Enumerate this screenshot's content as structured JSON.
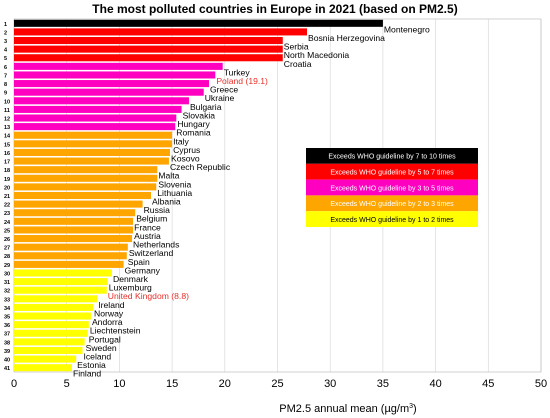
{
  "chart_data": {
    "type": "bar",
    "orientation": "horizontal",
    "title": "The most polluted countries in Europe in 2021 (based on PM2.5)",
    "xlabel": "PM2.5 annual mean (µg/m³)",
    "xlabel_main": "PM2.5 annual mean (µg/m",
    "xlabel_sup": "3",
    "xlabel_end": ")",
    "xlim": [
      0,
      50
    ],
    "xticks": [
      "0",
      "5",
      "10",
      "15",
      "20",
      "25",
      "30",
      "35",
      "40",
      "45",
      "50"
    ],
    "grid": true,
    "legend_position": "right",
    "bars": [
      {
        "rank": "1",
        "country": "Montenegro",
        "value": 35.0,
        "color": "#000000"
      },
      {
        "rank": "2",
        "country": "Bosnia Herzegovina",
        "value": 27.8,
        "color": "#ff0000"
      },
      {
        "rank": "3",
        "country": "Serbia",
        "value": 25.5,
        "color": "#ff0000"
      },
      {
        "rank": "4",
        "country": "North Macedonia",
        "value": 25.5,
        "color": "#ff0000"
      },
      {
        "rank": "5",
        "country": "Croatia",
        "value": 25.5,
        "color": "#ff0000"
      },
      {
        "rank": "6",
        "country": "Turkey",
        "value": 19.8,
        "color": "#ff00c0"
      },
      {
        "rank": "7",
        "country": "Poland (19.1)",
        "value": 19.1,
        "color": "#ff00c0",
        "highlight": true
      },
      {
        "rank": "8",
        "country": "Greece",
        "value": 18.5,
        "color": "#ff00c0"
      },
      {
        "rank": "9",
        "country": "Ukraine",
        "value": 18.0,
        "color": "#ff00c0"
      },
      {
        "rank": "10",
        "country": "Bulgaria",
        "value": 16.6,
        "color": "#ff00c0"
      },
      {
        "rank": "11",
        "country": "Slovakia",
        "value": 15.9,
        "color": "#ff00c0"
      },
      {
        "rank": "12",
        "country": "Hungary",
        "value": 15.4,
        "color": "#ff00c0"
      },
      {
        "rank": "13",
        "country": "Romania",
        "value": 15.3,
        "color": "#ff00c0"
      },
      {
        "rank": "14",
        "country": "Italy",
        "value": 15.0,
        "color": "#ffa500"
      },
      {
        "rank": "15",
        "country": "Cyprus",
        "value": 15.0,
        "color": "#ffa500"
      },
      {
        "rank": "16",
        "country": "Kosovo",
        "value": 14.8,
        "color": "#ffa500"
      },
      {
        "rank": "17",
        "country": "Czech Republic",
        "value": 14.7,
        "color": "#ffa500"
      },
      {
        "rank": "18",
        "country": "Malta",
        "value": 13.6,
        "color": "#ffa500"
      },
      {
        "rank": "19",
        "country": "Slovenia",
        "value": 13.6,
        "color": "#ffa500"
      },
      {
        "rank": "20",
        "country": "Lithuania",
        "value": 13.5,
        "color": "#ffa500"
      },
      {
        "rank": "21",
        "country": "Albania",
        "value": 13.0,
        "color": "#ffa500"
      },
      {
        "rank": "22",
        "country": "Russia",
        "value": 12.2,
        "color": "#ffa500"
      },
      {
        "rank": "23",
        "country": "Belgium",
        "value": 11.5,
        "color": "#ffa500"
      },
      {
        "rank": "24",
        "country": "France",
        "value": 11.3,
        "color": "#ffa500"
      },
      {
        "rank": "25",
        "country": "Austria",
        "value": 11.3,
        "color": "#ffa500"
      },
      {
        "rank": "26",
        "country": "Netherlands",
        "value": 11.2,
        "color": "#ffa500"
      },
      {
        "rank": "27",
        "country": "Switzerland",
        "value": 10.8,
        "color": "#ffa500"
      },
      {
        "rank": "28",
        "country": "Spain",
        "value": 10.7,
        "color": "#ffa500"
      },
      {
        "rank": "29",
        "country": "Germany",
        "value": 10.4,
        "color": "#ffa500"
      },
      {
        "rank": "30",
        "country": "Denmark",
        "value": 9.3,
        "color": "#ffff00"
      },
      {
        "rank": "31",
        "country": "Luxemburg",
        "value": 8.9,
        "color": "#ffff00"
      },
      {
        "rank": "32",
        "country": "United Kingdom (8.8)",
        "value": 8.8,
        "color": "#ffff00",
        "highlight": true
      },
      {
        "rank": "33",
        "country": "Ireland",
        "value": 7.9,
        "color": "#ffff00"
      },
      {
        "rank": "34",
        "country": "Norway",
        "value": 7.5,
        "color": "#ffff00"
      },
      {
        "rank": "35",
        "country": "Andorra",
        "value": 7.3,
        "color": "#ffff00"
      },
      {
        "rank": "36",
        "country": "Liechtenstein",
        "value": 7.1,
        "color": "#ffff00"
      },
      {
        "rank": "37",
        "country": "Portugal",
        "value": 7.0,
        "color": "#ffff00"
      },
      {
        "rank": "38",
        "country": "Sweden",
        "value": 6.7,
        "color": "#ffff00"
      },
      {
        "rank": "39",
        "country": "Iceland",
        "value": 6.5,
        "color": "#ffff00"
      },
      {
        "rank": "40",
        "country": "Estonia",
        "value": 5.9,
        "color": "#ffff00"
      },
      {
        "rank": "41",
        "country": "Finland",
        "value": 5.5,
        "color": "#ffff00"
      }
    ],
    "legend": [
      {
        "label": "Exceeds WHO guideline by 7 to 10 times",
        "color": "#000000",
        "text_color": "#ffffff"
      },
      {
        "label": "Exceeds WHO guideline by 5 to 7 times",
        "color": "#ff0000",
        "text_color": "#ffffff"
      },
      {
        "label": "Exceeds WHO guideline by 3 to 5 times",
        "color": "#ff00c0",
        "text_color": "#ffffff"
      },
      {
        "label": "Exceeds WHO guideline by 2 to 3 times",
        "color": "#ffa500",
        "text_color": "#ffffff"
      },
      {
        "label": "Exceeds WHO guideline by 1 to 2 times",
        "color": "#ffff00",
        "text_color": "#000000"
      }
    ]
  }
}
